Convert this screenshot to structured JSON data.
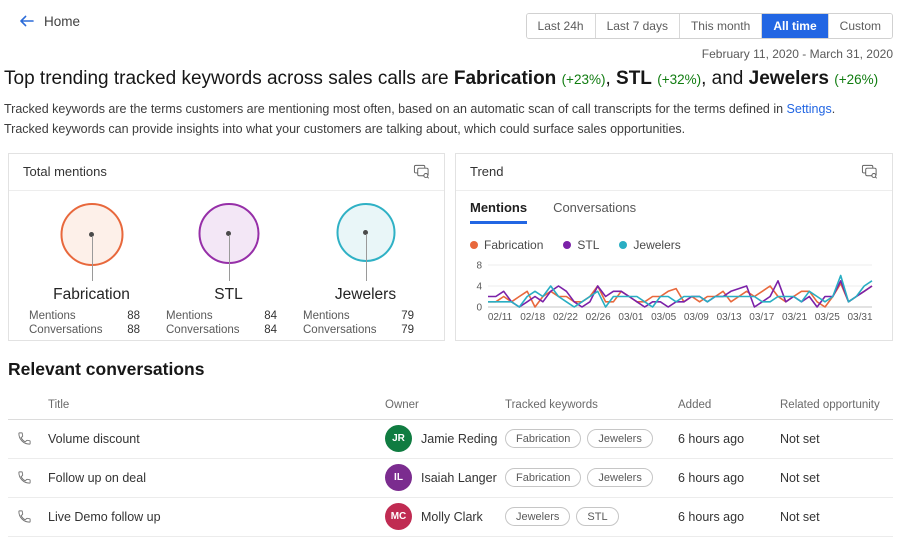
{
  "nav": {
    "back_label": "Home"
  },
  "time_filters": {
    "options": [
      "Last 24h",
      "Last 7 days",
      "This month",
      "All time",
      "Custom"
    ],
    "selected": "All time"
  },
  "date_range": "February 11, 2020 - March 31, 2020",
  "headline": {
    "prefix": "Top trending tracked keywords across sales calls are ",
    "keywords": [
      {
        "name": "Fabrication",
        "change": "(+23%)"
      },
      {
        "name": "STL",
        "change": "(+32%)"
      },
      {
        "name": "Jewelers",
        "change": "(+26%)"
      }
    ],
    "sep1": ", ",
    "sep2": ", and "
  },
  "description": {
    "line1_before": "Tracked keywords are the terms customers are mentioning most often, based on an automatic scan of call transcripts for the terms defined in ",
    "settings_link": "Settings",
    "line1_after": ".",
    "line2": "Tracked keywords can provide insights into what your customers are talking about, which could surface sales opportunities."
  },
  "icons": {
    "back": "arrow-left",
    "card_action": "view-data",
    "row_type": "phone-call"
  },
  "total_mentions_card": {
    "title": "Total mentions",
    "keywords": [
      {
        "name": "Fabrication",
        "color": "#e8683c",
        "fill": "#fdf0e9",
        "size": 63,
        "stats": [
          {
            "label": "Mentions",
            "value": "88"
          },
          {
            "label": "Conversations",
            "value": "88"
          }
        ]
      },
      {
        "name": "STL",
        "color": "#962fa8",
        "fill": "#f3e7f6",
        "size": 61,
        "stats": [
          {
            "label": "Mentions",
            "value": "84"
          },
          {
            "label": "Conversations",
            "value": "84"
          }
        ]
      },
      {
        "name": "Jewelers",
        "color": "#2fb1c5",
        "fill": "#e9f6f8",
        "size": 59,
        "stats": [
          {
            "label": "Mentions",
            "value": "79"
          },
          {
            "label": "Conversations",
            "value": "79"
          }
        ]
      }
    ]
  },
  "trend_card": {
    "title": "Trend",
    "tabs": [
      "Mentions",
      "Conversations"
    ],
    "active_tab": "Mentions",
    "accent_color": "#2266E3"
  },
  "chart_data": {
    "type": "line",
    "title": "Trend - Mentions",
    "xlabel": "",
    "ylabel": "",
    "ylim": [
      0,
      8
    ],
    "yticks": [
      0,
      4,
      8
    ],
    "grid": true,
    "legend_position": "top",
    "x_tick_labels": [
      "02/11",
      "02/18",
      "02/22",
      "02/26",
      "03/01",
      "03/05",
      "03/09",
      "03/13",
      "03/17",
      "03/21",
      "03/25",
      "03/31"
    ],
    "series": [
      {
        "name": "Fabrication",
        "color": "#e8683c",
        "values": [
          1,
          1,
          2,
          1,
          2,
          3,
          0,
          2,
          3,
          2,
          2,
          1,
          1,
          2,
          4,
          1,
          1,
          3,
          2,
          1,
          1,
          2,
          2,
          3,
          3.5,
          1,
          2,
          1,
          2,
          2,
          3,
          1,
          2,
          3,
          2,
          3,
          4,
          2,
          1,
          2,
          3,
          3,
          1,
          0,
          2,
          4.5,
          1,
          2,
          3,
          4
        ]
      },
      {
        "name": "STL",
        "color": "#7b21a8",
        "values": [
          2,
          2,
          3,
          1,
          0,
          1,
          2,
          1,
          3,
          4,
          3,
          1,
          0,
          1,
          4,
          2,
          3,
          3,
          2,
          1,
          0,
          1,
          1,
          0,
          1,
          1,
          2,
          2,
          1,
          2,
          2,
          3,
          3.5,
          4,
          0,
          1,
          2,
          5,
          1,
          2,
          1,
          2,
          0,
          2,
          2,
          5,
          1,
          2,
          3,
          4
        ]
      },
      {
        "name": "Jewelers",
        "color": "#29aec3",
        "values": [
          1,
          1,
          1,
          1,
          0,
          2,
          3,
          2,
          4,
          2,
          1,
          0,
          1,
          2,
          3,
          0,
          2,
          2,
          2,
          2,
          1,
          0,
          2,
          2,
          1,
          2,
          2,
          2,
          1,
          2,
          2,
          2,
          2,
          2,
          2,
          1,
          1,
          2,
          2,
          2,
          1,
          3,
          2,
          1,
          2,
          6,
          1,
          2,
          4,
          5
        ]
      }
    ]
  },
  "conversations": {
    "title": "Relevant conversations",
    "columns": [
      "Title",
      "Owner",
      "Tracked keywords",
      "Added",
      "Related opportunity"
    ],
    "rows": [
      {
        "title": "Volume discount",
        "owner": "Jamie Reding",
        "initials": "JR",
        "avatar_color": "#107c41",
        "keywords": [
          "Fabrication",
          "Jewelers"
        ],
        "added": "6 hours ago",
        "related": "Not set"
      },
      {
        "title": "Follow up on deal",
        "owner": "Isaiah Langer",
        "initials": "IL",
        "avatar_color": "#7b2c8f",
        "keywords": [
          "Fabrication",
          "Jewelers"
        ],
        "added": "6 hours ago",
        "related": "Not set"
      },
      {
        "title": "Live Demo follow up",
        "owner": "Molly Clark",
        "initials": "MC",
        "avatar_color": "#c02b52",
        "keywords": [
          "Jewelers",
          "STL"
        ],
        "added": "6 hours ago",
        "related": "Not set"
      }
    ]
  }
}
